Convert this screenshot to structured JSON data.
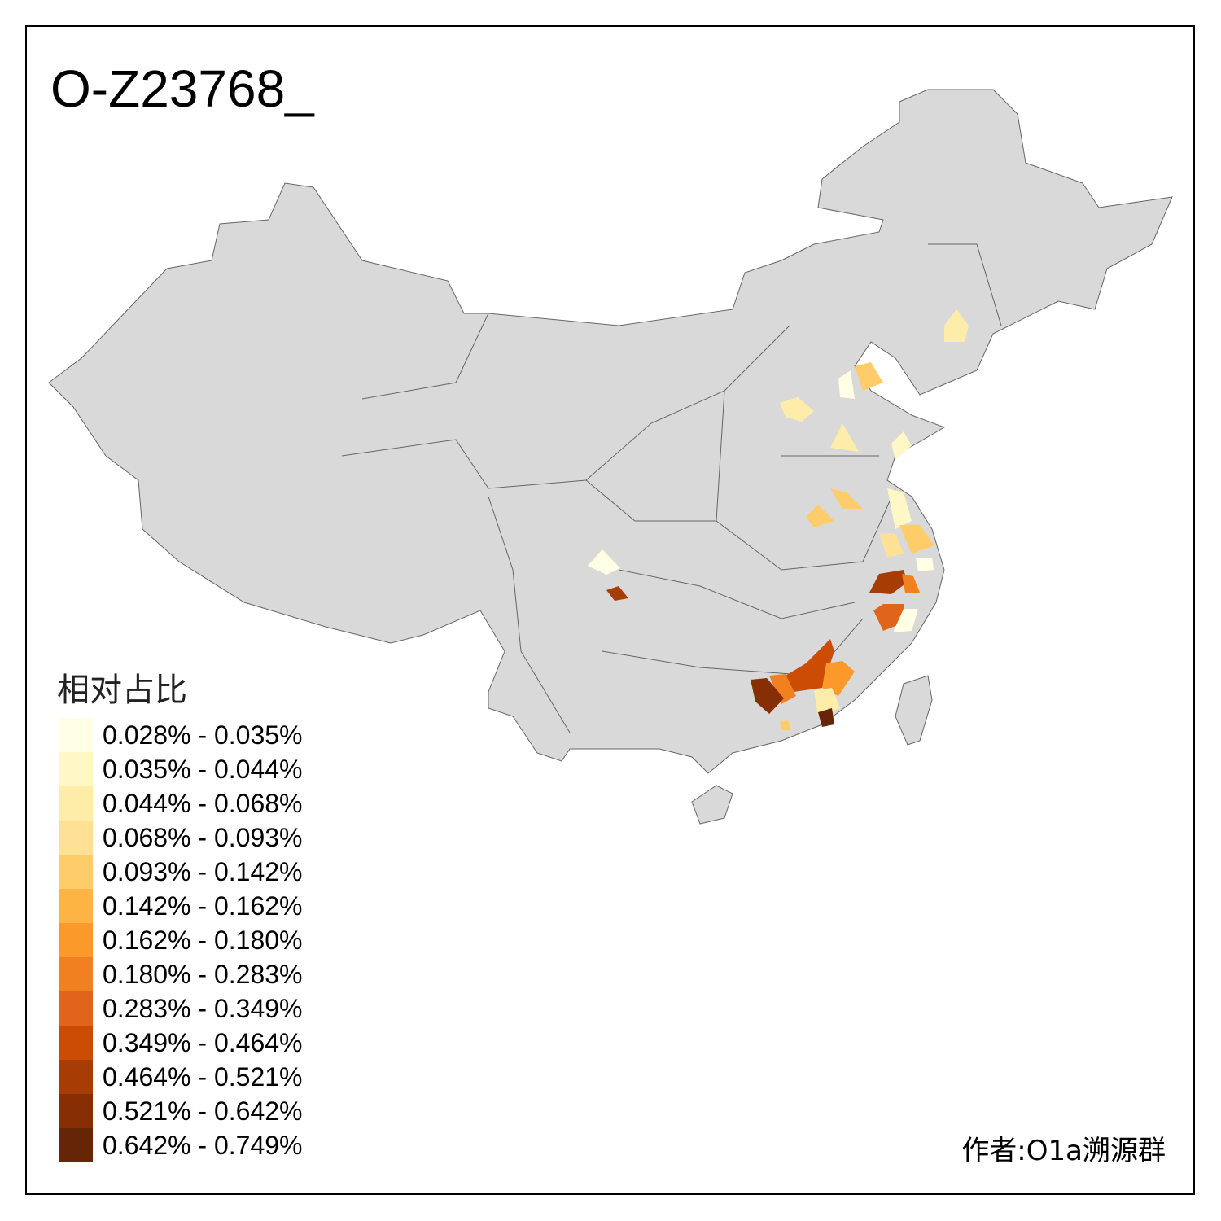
{
  "title": "O-Z23768_",
  "legend": {
    "title": "相对占比",
    "items": [
      {
        "label": "0.028% - 0.035%",
        "color": "#FFFFE5"
      },
      {
        "label": "0.035% - 0.044%",
        "color": "#FFF8C6"
      },
      {
        "label": "0.044% - 0.068%",
        "color": "#FEEDA8"
      },
      {
        "label": "0.068% - 0.093%",
        "color": "#FEE194"
      },
      {
        "label": "0.093% - 0.142%",
        "color": "#FECD69"
      },
      {
        "label": "0.142% - 0.162%",
        "color": "#FEB444"
      },
      {
        "label": "0.162% - 0.180%",
        "color": "#FB9A2A"
      },
      {
        "label": "0.180% - 0.283%",
        "color": "#F08020"
      },
      {
        "label": "0.283% - 0.349%",
        "color": "#E0651A"
      },
      {
        "label": "0.349% - 0.464%",
        "color": "#CC4C03"
      },
      {
        "label": "0.464% - 0.521%",
        "color": "#A83C05"
      },
      {
        "label": "0.521% - 0.642%",
        "color": "#882E05"
      },
      {
        "label": "0.642% - 0.749%",
        "color": "#662506"
      }
    ]
  },
  "author": "作者:O1a溯源群",
  "colors": {
    "land": "#D9D9D9",
    "border": "#666666"
  }
}
